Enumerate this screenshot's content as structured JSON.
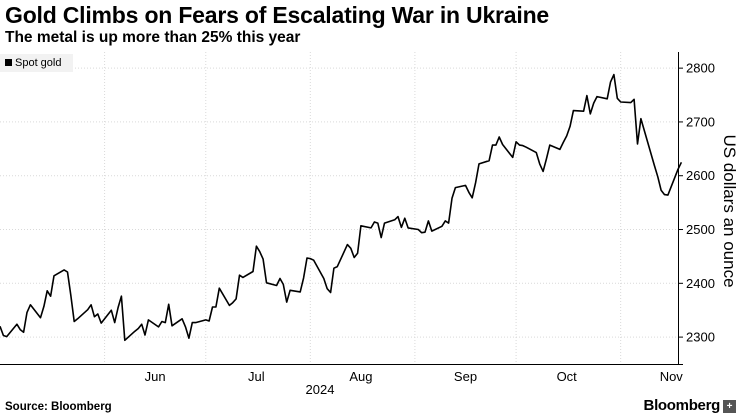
{
  "header": {
    "title": "Gold Climbs on Fears of Escalating War in Ukraine",
    "subtitle": "The metal is up more than 25% this year"
  },
  "footer": {
    "source": "Source: Bloomberg",
    "brand": "Bloomberg"
  },
  "colors": {
    "line": "#000000",
    "grid": "#d9d9d9",
    "legend_bg": "#f2f2f2"
  },
  "chart_data": {
    "type": "line",
    "title": "",
    "ylabel": "US dollars an ounce",
    "xlabel": "2024",
    "ylim": [
      2250,
      2830
    ],
    "yticks": [
      2300,
      2400,
      2500,
      2600,
      2700,
      2800
    ],
    "axis_position": "right",
    "grid": true,
    "legend": "top-left",
    "x_tick_labels": [
      {
        "label": "Jun",
        "date": "2024-06-01"
      },
      {
        "label": "Jul",
        "date": "2024-07-01"
      },
      {
        "label": "Aug",
        "date": "2024-08-01"
      },
      {
        "label": "Sep",
        "date": "2024-09-01"
      },
      {
        "label": "Oct",
        "date": "2024-10-01"
      },
      {
        "label": "Nov",
        "date": "2024-11-01"
      }
    ],
    "x_range": [
      "2024-05-01",
      "2024-11-18"
    ],
    "series": [
      {
        "name": "Spot gold",
        "points": [
          [
            "2024-05-01",
            2320
          ],
          [
            "2024-05-02",
            2303
          ],
          [
            "2024-05-03",
            2301
          ],
          [
            "2024-05-06",
            2324
          ],
          [
            "2024-05-07",
            2314
          ],
          [
            "2024-05-08",
            2309
          ],
          [
            "2024-05-09",
            2346
          ],
          [
            "2024-05-10",
            2360
          ],
          [
            "2024-05-13",
            2336
          ],
          [
            "2024-05-14",
            2357
          ],
          [
            "2024-05-15",
            2386
          ],
          [
            "2024-05-16",
            2376
          ],
          [
            "2024-05-17",
            2414
          ],
          [
            "2024-05-20",
            2425
          ],
          [
            "2024-05-21",
            2421
          ],
          [
            "2024-05-22",
            2378
          ],
          [
            "2024-05-23",
            2329
          ],
          [
            "2024-05-24",
            2334
          ],
          [
            "2024-05-27",
            2351
          ],
          [
            "2024-05-28",
            2360
          ],
          [
            "2024-05-29",
            2338
          ],
          [
            "2024-05-30",
            2343
          ],
          [
            "2024-05-31",
            2326
          ],
          [
            "2024-06-03",
            2350
          ],
          [
            "2024-06-04",
            2327
          ],
          [
            "2024-06-05",
            2355
          ],
          [
            "2024-06-06",
            2376
          ],
          [
            "2024-06-07",
            2294
          ],
          [
            "2024-06-10",
            2311
          ],
          [
            "2024-06-11",
            2316
          ],
          [
            "2024-06-12",
            2324
          ],
          [
            "2024-06-13",
            2304
          ],
          [
            "2024-06-14",
            2332
          ],
          [
            "2024-06-17",
            2319
          ],
          [
            "2024-06-18",
            2329
          ],
          [
            "2024-06-19",
            2327
          ],
          [
            "2024-06-20",
            2361
          ],
          [
            "2024-06-21",
            2321
          ],
          [
            "2024-06-24",
            2334
          ],
          [
            "2024-06-25",
            2319
          ],
          [
            "2024-06-26",
            2298
          ],
          [
            "2024-06-27",
            2327
          ],
          [
            "2024-06-28",
            2327
          ],
          [
            "2024-07-01",
            2332
          ],
          [
            "2024-07-02",
            2330
          ],
          [
            "2024-07-03",
            2356
          ],
          [
            "2024-07-04",
            2356
          ],
          [
            "2024-07-05",
            2391
          ],
          [
            "2024-07-08",
            2359
          ],
          [
            "2024-07-09",
            2364
          ],
          [
            "2024-07-10",
            2371
          ],
          [
            "2024-07-11",
            2415
          ],
          [
            "2024-07-12",
            2411
          ],
          [
            "2024-07-15",
            2422
          ],
          [
            "2024-07-16",
            2469
          ],
          [
            "2024-07-17",
            2459
          ],
          [
            "2024-07-18",
            2445
          ],
          [
            "2024-07-19",
            2401
          ],
          [
            "2024-07-22",
            2396
          ],
          [
            "2024-07-23",
            2409
          ],
          [
            "2024-07-24",
            2398
          ],
          [
            "2024-07-25",
            2365
          ],
          [
            "2024-07-26",
            2387
          ],
          [
            "2024-07-29",
            2384
          ],
          [
            "2024-07-30",
            2410
          ],
          [
            "2024-07-31",
            2447
          ],
          [
            "2024-08-01",
            2446
          ],
          [
            "2024-08-02",
            2443
          ],
          [
            "2024-08-05",
            2409
          ],
          [
            "2024-08-06",
            2390
          ],
          [
            "2024-08-07",
            2383
          ],
          [
            "2024-08-08",
            2428
          ],
          [
            "2024-08-09",
            2431
          ],
          [
            "2024-08-12",
            2472
          ],
          [
            "2024-08-13",
            2465
          ],
          [
            "2024-08-14",
            2448
          ],
          [
            "2024-08-15",
            2456
          ],
          [
            "2024-08-16",
            2507
          ],
          [
            "2024-08-19",
            2503
          ],
          [
            "2024-08-20",
            2514
          ],
          [
            "2024-08-21",
            2512
          ],
          [
            "2024-08-22",
            2485
          ],
          [
            "2024-08-23",
            2512
          ],
          [
            "2024-08-26",
            2518
          ],
          [
            "2024-08-27",
            2524
          ],
          [
            "2024-08-28",
            2504
          ],
          [
            "2024-08-29",
            2521
          ],
          [
            "2024-08-30",
            2503
          ],
          [
            "2024-09-02",
            2500
          ],
          [
            "2024-09-03",
            2494
          ],
          [
            "2024-09-04",
            2495
          ],
          [
            "2024-09-05",
            2516
          ],
          [
            "2024-09-06",
            2497
          ],
          [
            "2024-09-09",
            2506
          ],
          [
            "2024-09-10",
            2516
          ],
          [
            "2024-09-11",
            2512
          ],
          [
            "2024-09-12",
            2558
          ],
          [
            "2024-09-13",
            2578
          ],
          [
            "2024-09-16",
            2582
          ],
          [
            "2024-09-17",
            2569
          ],
          [
            "2024-09-18",
            2559
          ],
          [
            "2024-09-19",
            2587
          ],
          [
            "2024-09-20",
            2622
          ],
          [
            "2024-09-23",
            2628
          ],
          [
            "2024-09-24",
            2657
          ],
          [
            "2024-09-25",
            2657
          ],
          [
            "2024-09-26",
            2672
          ],
          [
            "2024-09-27",
            2658
          ],
          [
            "2024-09-30",
            2634
          ],
          [
            "2024-10-01",
            2663
          ],
          [
            "2024-10-02",
            2657
          ],
          [
            "2024-10-03",
            2656
          ],
          [
            "2024-10-04",
            2653
          ],
          [
            "2024-10-07",
            2643
          ],
          [
            "2024-10-08",
            2622
          ],
          [
            "2024-10-09",
            2608
          ],
          [
            "2024-10-10",
            2631
          ],
          [
            "2024-10-11",
            2657
          ],
          [
            "2024-10-14",
            2649
          ],
          [
            "2024-10-15",
            2662
          ],
          [
            "2024-10-16",
            2674
          ],
          [
            "2024-10-17",
            2692
          ],
          [
            "2024-10-18",
            2721
          ],
          [
            "2024-10-21",
            2720
          ],
          [
            "2024-10-22",
            2749
          ],
          [
            "2024-10-23",
            2715
          ],
          [
            "2024-10-24",
            2735
          ],
          [
            "2024-10-25",
            2747
          ],
          [
            "2024-10-28",
            2743
          ],
          [
            "2024-10-29",
            2774
          ],
          [
            "2024-10-30",
            2788
          ],
          [
            "2024-10-31",
            2744
          ],
          [
            "2024-11-01",
            2737
          ],
          [
            "2024-11-04",
            2736
          ],
          [
            "2024-11-05",
            2742
          ],
          [
            "2024-11-06",
            2659
          ],
          [
            "2024-11-07",
            2706
          ],
          [
            "2024-11-08",
            2684
          ],
          [
            "2024-11-11",
            2619
          ],
          [
            "2024-11-12",
            2598
          ],
          [
            "2024-11-13",
            2573
          ],
          [
            "2024-11-14",
            2565
          ],
          [
            "2024-11-15",
            2564
          ],
          [
            "2024-11-18",
            2612
          ],
          [
            "2024-11-19",
            2625
          ]
        ]
      }
    ]
  }
}
